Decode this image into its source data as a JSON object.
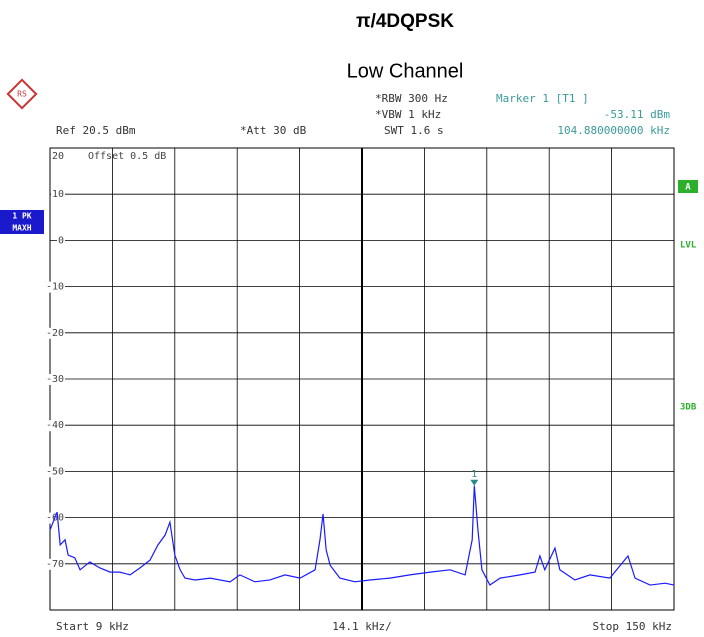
{
  "chart_data": {
    "type": "line",
    "title": "π/4DQPSK",
    "subtitle": "Low Channel",
    "header": {
      "ref": "Ref  20.5 dBm",
      "att": "*Att  30 dB",
      "rbw": "*RBW 300 Hz",
      "vbw": "*VBW 1 kHz",
      "swt": "SWT 1.6 s",
      "marker_name": "Marker 1 [T1 ]",
      "marker_level": "-53.11 dBm",
      "marker_freq": "104.880000000 kHz",
      "offset": "Offset  0.5 dB"
    },
    "side_labels": {
      "trace": "1 PK",
      "mode": "MAXH",
      "a": "A",
      "lvl": "LVL",
      "db": "3DB"
    },
    "footer": {
      "start": "Start 9 kHz",
      "div": "14.1 kHz/",
      "stop": "Stop 150 kHz"
    },
    "xlim": [
      9,
      150
    ],
    "ylim": [
      -80,
      20
    ],
    "yticks": [
      20,
      10,
      0,
      -10,
      -20,
      -30,
      -40,
      -50,
      -60,
      -70
    ],
    "grid": true,
    "series": [
      {
        "name": "1 PK",
        "color": "#1a1aff",
        "x": [
          9.0,
          10.6,
          11.3,
          12.4,
          13.1,
          14.6,
          15.8,
          18.0,
          20.3,
          22.6,
          24.8,
          27.1,
          29.3,
          31.6,
          33.4,
          35.0,
          36.1,
          37.2,
          38.4,
          39.5,
          41.8,
          45.2,
          49.7,
          51.9,
          55.3,
          58.7,
          62.1,
          65.5,
          68.9,
          70.0,
          70.7,
          71.4,
          72.3,
          74.5,
          77.9,
          81.3,
          85.8,
          90.3,
          94.9,
          99.4,
          102.8,
          104.4,
          104.88,
          105.7,
          106.6,
          108.4,
          110.7,
          115.2,
          118.6,
          119.7,
          120.8,
          123.1,
          124.2,
          127.6,
          131.0,
          135.5,
          139.6,
          141.2,
          144.6,
          148.0,
          150.0
        ],
        "values": [
          -62.7,
          -58.8,
          -65.9,
          -64.8,
          -68.1,
          -68.7,
          -71.3,
          -69.6,
          -70.9,
          -71.8,
          -71.8,
          -72.4,
          -70.9,
          -69.2,
          -65.9,
          -63.8,
          -61.0,
          -68.1,
          -71.3,
          -73.1,
          -73.5,
          -73.1,
          -73.9,
          -72.4,
          -73.9,
          -73.5,
          -72.4,
          -73.1,
          -71.3,
          -64.8,
          -59.2,
          -67.0,
          -70.3,
          -73.1,
          -73.9,
          -73.5,
          -73.1,
          -72.4,
          -71.8,
          -71.3,
          -72.4,
          -64.8,
          -53.11,
          -62.7,
          -71.3,
          -74.6,
          -73.1,
          -72.4,
          -71.8,
          -68.3,
          -71.3,
          -66.6,
          -71.3,
          -73.5,
          -72.4,
          -73.1,
          -68.3,
          -73.1,
          -74.6,
          -74.2,
          -74.6
        ]
      }
    ],
    "marker": {
      "label": "1",
      "x": 104.88,
      "y": -53.11,
      "color": "#2a8a8a"
    }
  }
}
